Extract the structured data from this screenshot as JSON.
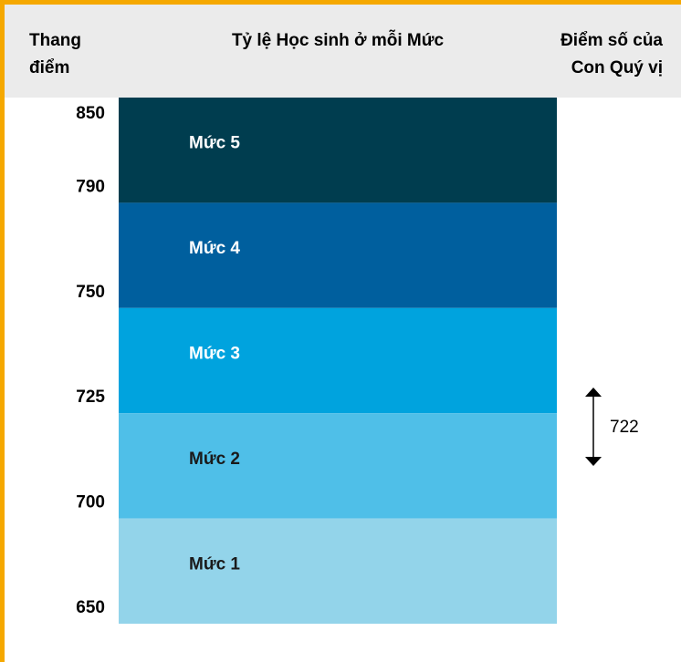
{
  "chart_data": {
    "type": "levels",
    "headers": {
      "scale": [
        "Thang",
        "điểm"
      ],
      "middle": "Tỷ lệ Học sinh ở mỗi Mức",
      "score": [
        "Điểm số của",
        "Con Quý vị"
      ]
    },
    "categories": [
      "Mức 5",
      "Mức 4",
      "Mức 3",
      "Mức 2",
      "Mức 1"
    ],
    "colors": [
      "#003d4f",
      "#005f9e",
      "#00a3de",
      "#4fbfe8",
      "#93d4ea"
    ],
    "yticks": [
      850,
      790,
      750,
      725,
      700,
      650
    ],
    "score": 722
  }
}
